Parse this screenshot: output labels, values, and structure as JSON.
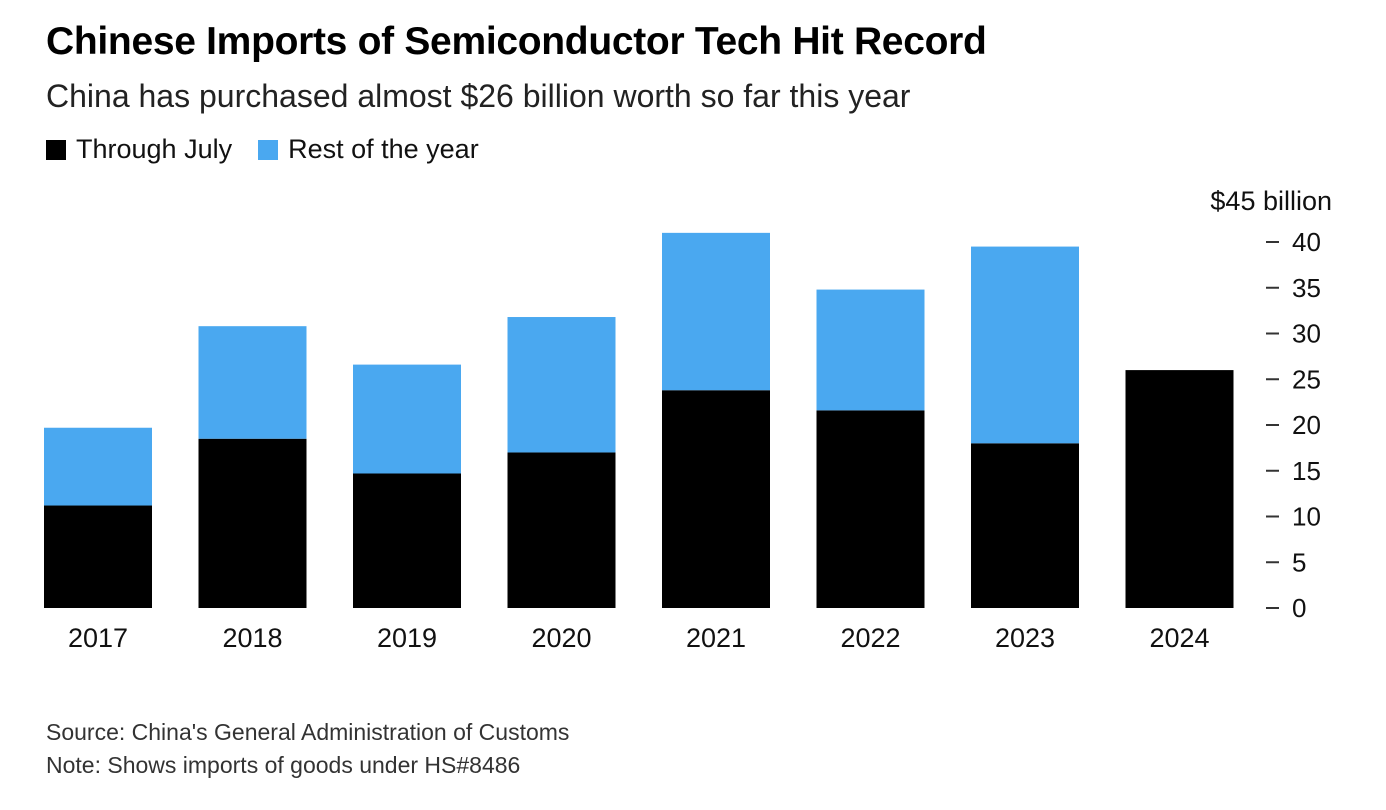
{
  "title": "Chinese Imports of Semiconductor Tech Hit Record",
  "subtitle": "China has purchased almost $26 billion worth so far this year",
  "legend": [
    {
      "label": "Through July",
      "color": "#000000"
    },
    {
      "label": "Rest of the year",
      "color": "#4aa8f0"
    }
  ],
  "footer": {
    "source": "Source: China's General Administration of Customs",
    "note": "Note: Shows imports of goods under HS#8486"
  },
  "chart_data": {
    "type": "bar",
    "stacked": true,
    "title": "Chinese Imports of Semiconductor Tech Hit Record",
    "ylabel": "$45 billion",
    "ylim": [
      0,
      45
    ],
    "yticks": [
      0,
      5,
      10,
      15,
      20,
      25,
      30,
      35,
      40
    ],
    "y_axis_side": "right",
    "categories": [
      "2017",
      "2018",
      "2019",
      "2020",
      "2021",
      "2022",
      "2023",
      "2024"
    ],
    "series": [
      {
        "name": "Through July",
        "color": "#000000",
        "values": [
          11.2,
          18.5,
          14.7,
          17.0,
          23.8,
          21.6,
          18.0,
          26.0
        ]
      },
      {
        "name": "Rest of the year",
        "color": "#4aa8f0",
        "values": [
          8.5,
          12.3,
          11.9,
          14.8,
          17.2,
          13.2,
          21.5,
          0
        ]
      }
    ]
  }
}
